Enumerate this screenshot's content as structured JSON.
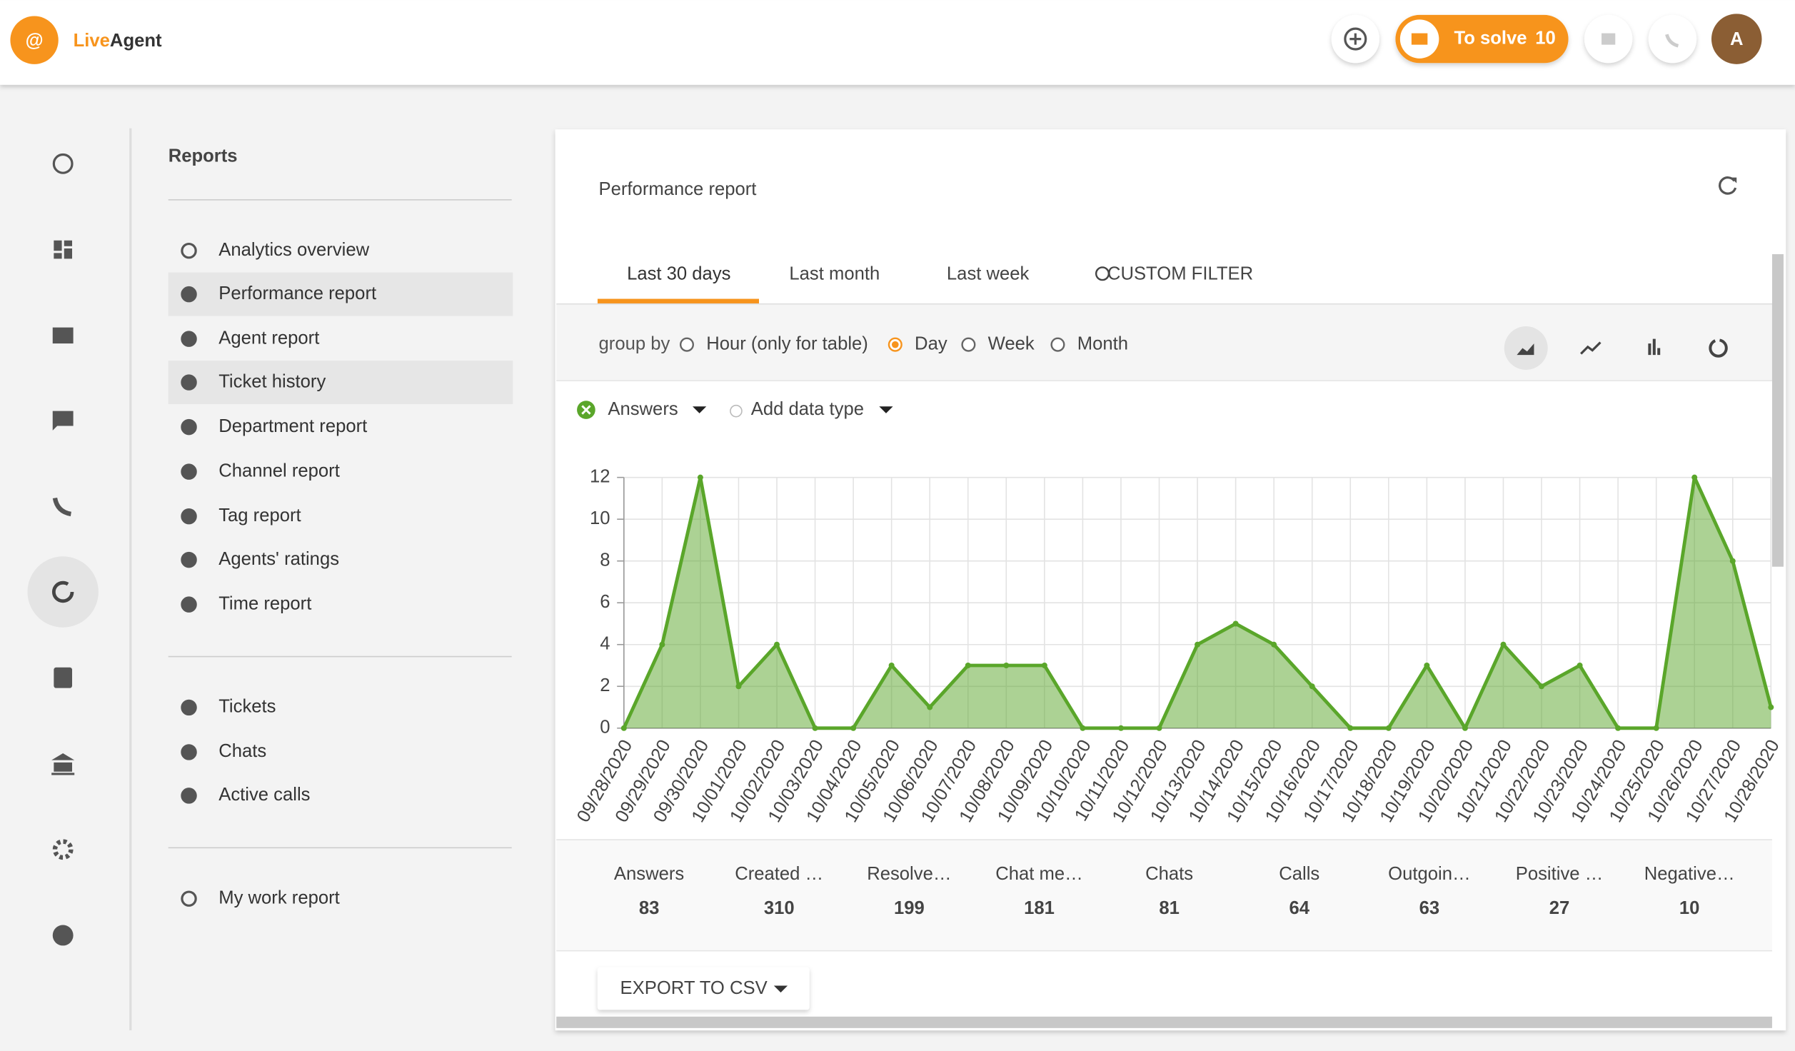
{
  "header": {
    "logo_part1": "Live",
    "logo_part2": "Agent",
    "to_solve_label": "To solve",
    "to_solve_count": "10",
    "avatar": "A"
  },
  "sidebar": {
    "title": "Reports",
    "groups": [
      [
        "Analytics overview",
        "Performance report",
        "Agent report",
        "Ticket history",
        "Department report",
        "Channel report",
        "Tag report",
        "Agents' ratings",
        "Time report"
      ],
      [
        "Tickets",
        "Chats",
        "Active calls"
      ],
      [
        "My work report"
      ]
    ]
  },
  "report": {
    "title": "Performance report",
    "tabs": [
      "Last 30 days",
      "Last month",
      "Last week",
      "CUSTOM FILTER"
    ],
    "group_by_label": "group by",
    "group_by_options": [
      "Hour (only for table)",
      "Day",
      "Week",
      "Month"
    ],
    "add_data_type": "Add data type",
    "export": "EXPORT TO CSV"
  },
  "chart_data": {
    "type": "area",
    "categories": [
      "09/28/2020",
      "09/29/2020",
      "09/30/2020",
      "10/01/2020",
      "10/02/2020",
      "10/03/2020",
      "10/04/2020",
      "10/05/2020",
      "10/06/2020",
      "10/07/2020",
      "10/08/2020",
      "10/09/2020",
      "10/10/2020",
      "10/11/2020",
      "10/12/2020",
      "10/13/2020",
      "10/14/2020",
      "10/15/2020",
      "10/16/2020",
      "10/17/2020",
      "10/18/2020",
      "10/19/2020",
      "10/20/2020",
      "10/21/2020",
      "10/22/2020",
      "10/23/2020",
      "10/24/2020",
      "10/25/2020",
      "10/26/2020",
      "10/27/2020",
      "10/28/2020"
    ],
    "series": [
      {
        "name": "Answers",
        "color": "#5aa62a",
        "values": [
          0,
          4,
          12,
          2,
          4,
          0,
          0,
          3,
          1,
          3,
          3,
          3,
          0,
          0,
          0,
          4,
          5,
          4,
          2,
          0,
          0,
          3,
          0,
          4,
          2,
          3,
          0,
          0,
          12,
          8,
          1
        ]
      }
    ],
    "ylim": [
      0,
      12
    ],
    "yticks": [
      0,
      2,
      4,
      6,
      8,
      10,
      12
    ],
    "grid": true
  },
  "summary": [
    {
      "label": "Answers",
      "value": "83"
    },
    {
      "label": "Created …",
      "value": "310"
    },
    {
      "label": "Resolve…",
      "value": "199"
    },
    {
      "label": "Chat me…",
      "value": "181"
    },
    {
      "label": "Chats",
      "value": "81"
    },
    {
      "label": "Calls",
      "value": "64"
    },
    {
      "label": "Outgoin…",
      "value": "63"
    },
    {
      "label": "Positive …",
      "value": "27"
    },
    {
      "label": "Negative…",
      "value": "10"
    }
  ]
}
